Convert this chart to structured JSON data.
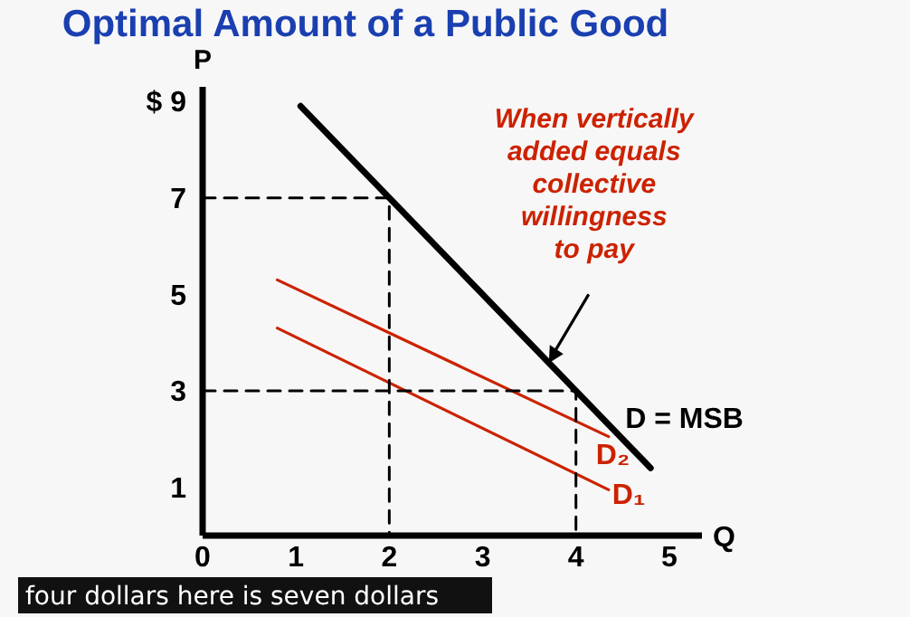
{
  "chart_data": {
    "type": "line",
    "title": "Optimal Amount of a Public Good",
    "ylabel": "P",
    "xlabel": "Q",
    "xlim": [
      0,
      5.35
    ],
    "ylim": [
      0,
      9.3
    ],
    "xticks": [
      0,
      1,
      2,
      3,
      4,
      5
    ],
    "yticks": [
      1,
      3,
      5,
      7,
      {
        "value": 9,
        "label": "$ 9"
      }
    ],
    "grid": false,
    "marker": "none",
    "series": [
      {
        "name": "D = MSB",
        "color": "#000000",
        "x": [
          1.05,
          4.8
        ],
        "values": [
          8.9,
          1.4
        ]
      },
      {
        "name": "D₂",
        "color": "#cc2200",
        "x": [
          0.8,
          4.35
        ],
        "values": [
          5.3,
          2.05
        ]
      },
      {
        "name": "D₁",
        "color": "#cc2200",
        "x": [
          0.8,
          4.35
        ],
        "values": [
          4.3,
          0.95
        ]
      },
      {
        "color": "#000000",
        "line_style": "dashed",
        "x": [
          0,
          2,
          2
        ],
        "values": [
          7,
          7,
          0
        ]
      },
      {
        "color": "#000000",
        "line_style": "dashed",
        "x": [
          0,
          4,
          4
        ],
        "values": [
          3,
          3,
          0
        ]
      }
    ],
    "annotations": [
      "When vertically\nadded equals\ncollective\nwillingness\nto pay",
      "four dollars here is seven dollars"
    ]
  }
}
